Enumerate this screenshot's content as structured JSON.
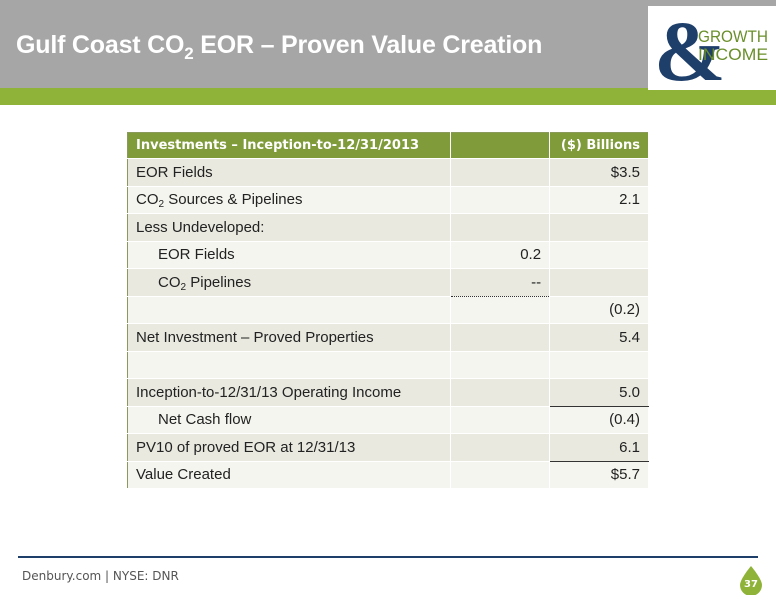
{
  "header": {
    "title_pre": "Gulf Coast CO",
    "title_sub": "2",
    "title_post": " EOR – Proven Value Creation"
  },
  "logo": {
    "symbol": "&",
    "line1": "GROWTH",
    "line2": "INCOME",
    "color": "#1f3f6b"
  },
  "table": {
    "header": {
      "label": "Investments – Inception-to-12/31/2013",
      "unit": "($) Billions"
    },
    "rows": {
      "r1": {
        "label": "EOR Fields",
        "mid": "",
        "val": "$3.5"
      },
      "r2": {
        "label_pre": "CO",
        "label_sub": "2",
        "label_post": " Sources & Pipelines",
        "mid": "",
        "val": "2.1"
      },
      "r3": {
        "label": "Less Undeveloped:",
        "mid": "",
        "val": ""
      },
      "r4": {
        "label": "EOR Fields",
        "mid": "0.2",
        "val": ""
      },
      "r5": {
        "label_pre": "CO",
        "label_sub": "2",
        "label_post": " Pipelines",
        "mid": "--",
        "val": ""
      },
      "r6": {
        "label": "",
        "mid": "",
        "val": "(0.2)"
      },
      "r7": {
        "label": "Net Investment – Proved Properties",
        "mid": "",
        "val": "5.4"
      },
      "r8": {
        "label": "",
        "mid": "",
        "val": ""
      },
      "r9": {
        "label": "Inception-to-12/31/13 Operating Income",
        "mid": "",
        "val": "5.0"
      },
      "r10": {
        "label": "Net Cash flow",
        "mid": "",
        "val": "(0.4)"
      },
      "r11": {
        "label": "PV10 of proved EOR at 12/31/13",
        "mid": "",
        "val": "6.1"
      },
      "r12": {
        "label": "Value Created",
        "mid": "",
        "val": "$5.7"
      }
    }
  },
  "footer": {
    "text": "Denbury.com | NYSE: DNR",
    "page": "37"
  },
  "colors": {
    "header_gray": "#a6a6a6",
    "accent_green": "#8fb339",
    "table_header": "#7f9b3a",
    "navy": "#1f3f6b"
  }
}
